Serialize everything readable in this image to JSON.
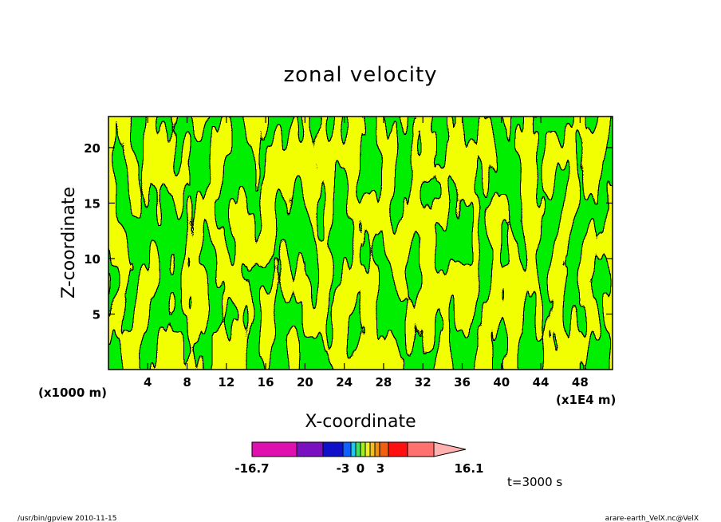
{
  "chart_data": {
    "type": "heatmap",
    "title": "zonal velocity",
    "xlabel": "X-coordinate",
    "ylabel": "Z-coordinate",
    "x_ticks": [
      "4",
      "8",
      "12",
      "16",
      "20",
      "24",
      "28",
      "32",
      "36",
      "40",
      "44",
      "48"
    ],
    "y_ticks": [
      "5",
      "10",
      "15",
      "20"
    ],
    "x_unit": "(x1E4 m)",
    "y_unit": "(x1000 m)",
    "xlim": [
      0,
      51.3
    ],
    "ylim": [
      0,
      22.8
    ],
    "colorbar": {
      "labels": [
        "-16.7",
        "-3",
        "0",
        "3",
        "16.1"
      ],
      "colors": [
        "#e010b0",
        "#7a10c0",
        "#1010c8",
        "#1060ff",
        "#20c8f0",
        "#40e060",
        "#a0f020",
        "#f0f020",
        "#f0c020",
        "#f09010",
        "#f06010",
        "#ff1010",
        "#ff7070",
        "#ffb0b0"
      ]
    },
    "field_colors": {
      "negative_small": "#00ee00",
      "positive_small": "#f2ff00"
    },
    "time_label": "t=3000 s"
  },
  "footer": {
    "left": "/usr/bin/gpview  2010-11-15",
    "right": "arare-earth_VelX.nc@VelX"
  }
}
